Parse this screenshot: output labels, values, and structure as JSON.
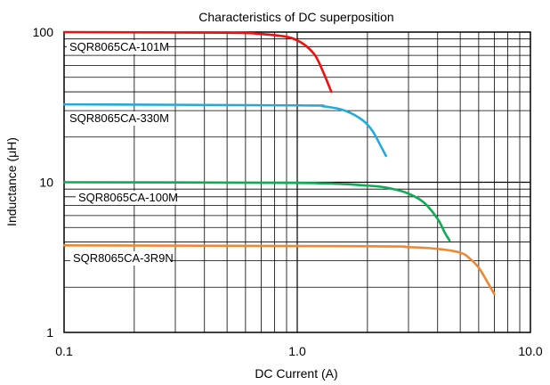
{
  "chart_data": {
    "type": "line",
    "title": "Characteristics of DC superposition",
    "xlabel": "DC Current (A)",
    "ylabel": "Inductance  (μH)",
    "x_scale": "log",
    "y_scale": "log",
    "xlim": [
      0.1,
      10
    ],
    "ylim": [
      1,
      100
    ],
    "x_ticks": [
      0.1,
      1,
      10
    ],
    "x_tick_labels": [
      "0.1",
      "1.0",
      "10.0"
    ],
    "y_ticks": [
      1,
      10,
      100
    ],
    "y_tick_labels": [
      "1",
      "10",
      "100"
    ],
    "grid": true,
    "legend": "inline labels",
    "series": [
      {
        "name": "SQR8065CA-101M",
        "color": "#ee1111",
        "points": [
          [
            0.1,
            100
          ],
          [
            0.5,
            99
          ],
          [
            0.7,
            97
          ],
          [
            0.9,
            93
          ],
          [
            1.0,
            88
          ],
          [
            1.1,
            80
          ],
          [
            1.2,
            69
          ],
          [
            1.3,
            53
          ],
          [
            1.4,
            40
          ]
        ]
      },
      {
        "name": "SQR8065CA-330M",
        "color": "#22aadd",
        "points": [
          [
            0.1,
            33
          ],
          [
            1.0,
            32.5
          ],
          [
            1.3,
            32
          ],
          [
            1.6,
            30
          ],
          [
            1.9,
            26
          ],
          [
            2.1,
            22
          ],
          [
            2.3,
            17
          ],
          [
            2.4,
            15
          ]
        ]
      },
      {
        "name": "SQR8065CA-100M",
        "color": "#11aa55",
        "points": [
          [
            0.1,
            10
          ],
          [
            1.0,
            9.9
          ],
          [
            2.0,
            9.5
          ],
          [
            2.5,
            9.1
          ],
          [
            3.0,
            8.4
          ],
          [
            3.5,
            7.3
          ],
          [
            4.0,
            5.7
          ],
          [
            4.3,
            4.6
          ],
          [
            4.5,
            4.1
          ]
        ]
      },
      {
        "name": "SQR8065CA-3R9N",
        "color": "#ee8833",
        "points": [
          [
            0.1,
            3.8
          ],
          [
            2.0,
            3.75
          ],
          [
            3.0,
            3.7
          ],
          [
            4.0,
            3.6
          ],
          [
            5.0,
            3.4
          ],
          [
            5.5,
            3.1
          ],
          [
            6.0,
            2.7
          ],
          [
            6.5,
            2.2
          ],
          [
            7.0,
            1.8
          ]
        ]
      }
    ]
  }
}
